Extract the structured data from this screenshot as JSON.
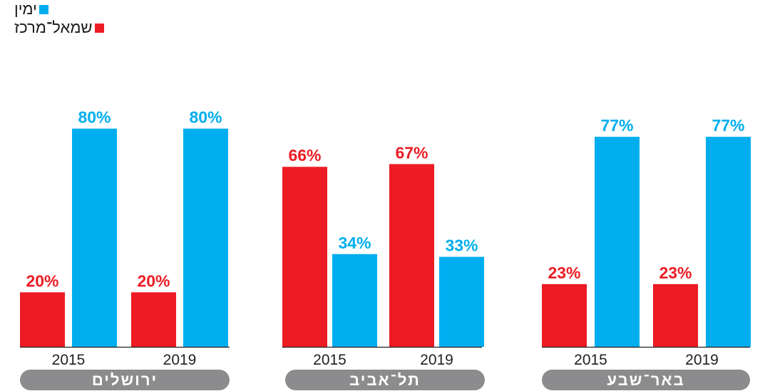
{
  "legend": [
    {
      "label": "ימין",
      "color": "#00AEEF"
    },
    {
      "label": "שמאל־מרכז",
      "color": "#ED1C24"
    }
  ],
  "colors": {
    "left_center": "#ED1C24",
    "right": "#00AEEF",
    "city_pill": "#8C8C8E",
    "axis": "#231F20"
  },
  "chart_data": [
    {
      "type": "bar",
      "group_label": "ירושלים",
      "categories": [
        "2015",
        "2019"
      ],
      "ylim": [
        0,
        100
      ],
      "series": [
        {
          "name": "שמאל־מרכז",
          "values": [
            20,
            20
          ],
          "labels": [
            "20%",
            "20%"
          ]
        },
        {
          "name": "ימין",
          "values": [
            80,
            80
          ],
          "labels": [
            "80%",
            "80%"
          ]
        }
      ]
    },
    {
      "type": "bar",
      "group_label": "תל־אביב",
      "categories": [
        "2015",
        "2019"
      ],
      "ylim": [
        0,
        100
      ],
      "series": [
        {
          "name": "שמאל־מרכז",
          "values": [
            66,
            67
          ],
          "labels": [
            "66%",
            "67%"
          ]
        },
        {
          "name": "ימין",
          "values": [
            34,
            33
          ],
          "labels": [
            "34%",
            "33%"
          ]
        }
      ]
    },
    {
      "type": "bar",
      "group_label": "באר־שבע",
      "categories": [
        "2015",
        "2019"
      ],
      "ylim": [
        0,
        100
      ],
      "series": [
        {
          "name": "שמאל־מרכז",
          "values": [
            23,
            23
          ],
          "labels": [
            "23%",
            "23%"
          ]
        },
        {
          "name": "ימין",
          "values": [
            77,
            77
          ],
          "labels": [
            "77%",
            "77%"
          ]
        }
      ]
    }
  ]
}
